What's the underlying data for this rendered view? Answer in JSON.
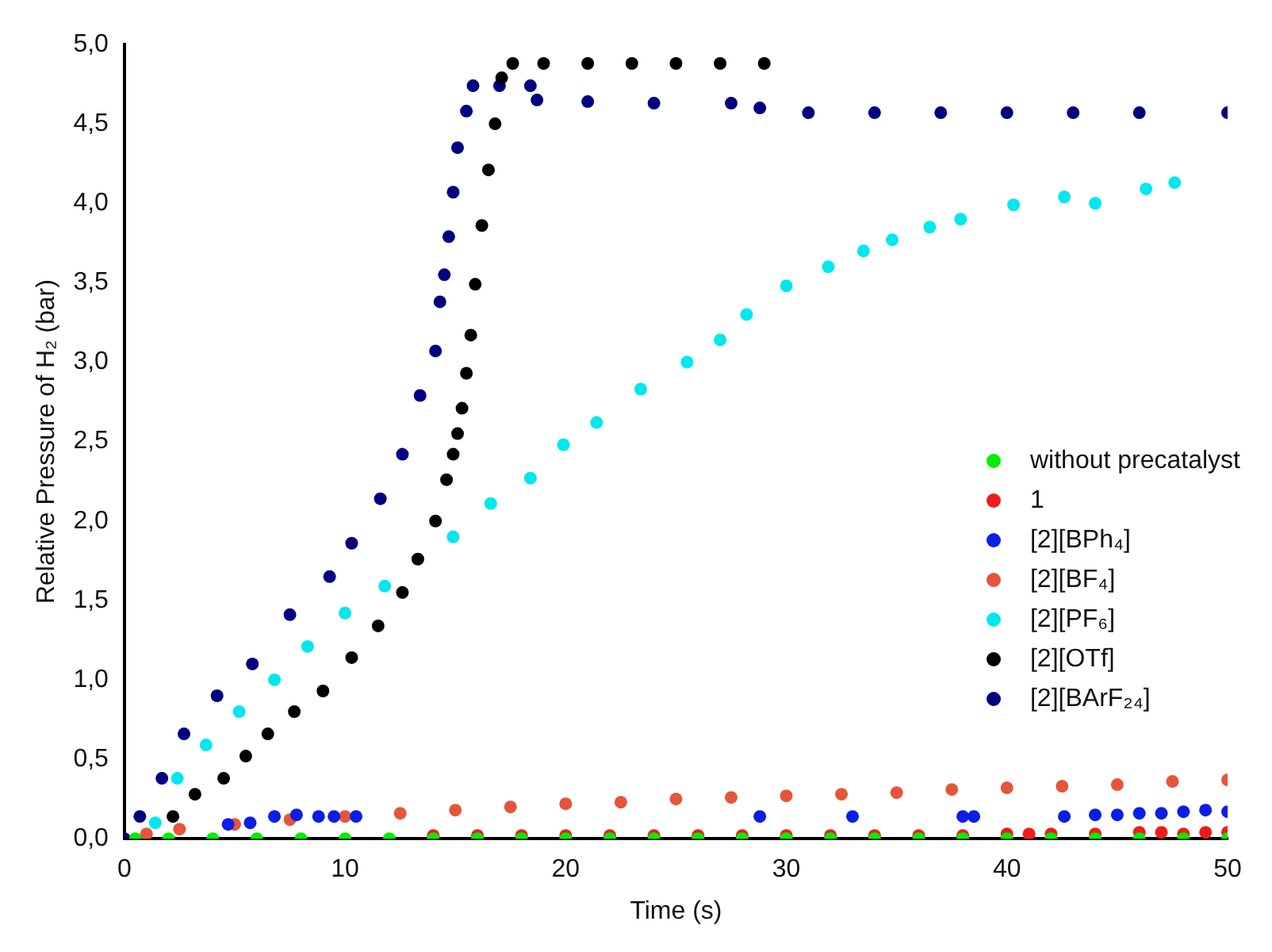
{
  "chart_data": {
    "type": "scatter",
    "xlabel": "Time (s)",
    "ylabel": "Relative Pressure of H₂ (bar)",
    "xlim": [
      0,
      50
    ],
    "xticks": [
      0,
      10,
      20,
      30,
      40,
      50
    ],
    "ylim": [
      0,
      5
    ],
    "yticks": [
      {
        "value": 0,
        "label": "0,0"
      },
      {
        "value": 0.5,
        "label": "0,5"
      },
      {
        "value": 1,
        "label": "1,0"
      },
      {
        "value": 1.5,
        "label": "1,5"
      },
      {
        "value": 2,
        "label": "2,0"
      },
      {
        "value": 2.5,
        "label": "2,5"
      },
      {
        "value": 3,
        "label": "3,0"
      },
      {
        "value": 3.5,
        "label": "3,5"
      },
      {
        "value": 4,
        "label": "4,0"
      },
      {
        "value": 4.5,
        "label": "4,5"
      },
      {
        "value": 5,
        "label": "5,0"
      }
    ],
    "grid": false,
    "legend": "right",
    "marker": "circle",
    "series": [
      {
        "name": "without precatalyst",
        "color": "#00ee00",
        "x": [
          0.5,
          2,
          4,
          6,
          8,
          10,
          12,
          14,
          16,
          18,
          20,
          22,
          24,
          26,
          28,
          30,
          32,
          34,
          36,
          38,
          40,
          42,
          44,
          46,
          48,
          50
        ],
        "values": [
          0,
          0,
          0,
          0,
          0,
          0,
          0,
          0,
          0,
          0,
          0,
          0,
          0,
          0,
          0,
          0,
          0,
          0,
          0,
          0,
          0,
          0,
          0,
          0,
          0,
          0
        ]
      },
      {
        "name": "1",
        "color": "#ee1c1c",
        "x": [
          14,
          16,
          18,
          20,
          22,
          24,
          26,
          28,
          30,
          32,
          34,
          36,
          38,
          40,
          41,
          42,
          44,
          46,
          47,
          48,
          49,
          50
        ],
        "values": [
          0.02,
          0.02,
          0.02,
          0.02,
          0.02,
          0.02,
          0.02,
          0.02,
          0.02,
          0.02,
          0.02,
          0.02,
          0.02,
          0.03,
          0.03,
          0.03,
          0.03,
          0.04,
          0.04,
          0.03,
          0.04,
          0.04
        ]
      },
      {
        "name": "[2][BPh₄]",
        "color": "#0a1ee8",
        "x": [
          4.7,
          5.7,
          6.8,
          7.8,
          8.8,
          9.5,
          10.5,
          28.8,
          33,
          38,
          38.5,
          42.6,
          44,
          45,
          46,
          47,
          48,
          49,
          50
        ],
        "values": [
          0.09,
          0.1,
          0.14,
          0.15,
          0.14,
          0.14,
          0.14,
          0.14,
          0.14,
          0.14,
          0.14,
          0.14,
          0.15,
          0.15,
          0.16,
          0.16,
          0.17,
          0.18,
          0.17
        ]
      },
      {
        "name": "[2][BF₄]",
        "color": "#e5553a",
        "x": [
          1,
          2.5,
          5,
          7.5,
          10,
          12.5,
          15,
          17.5,
          20,
          22.5,
          25,
          27.5,
          30,
          32.5,
          35,
          37.5,
          40,
          42.5,
          45,
          47.5,
          50
        ],
        "values": [
          0.03,
          0.06,
          0.09,
          0.12,
          0.14,
          0.16,
          0.18,
          0.2,
          0.22,
          0.23,
          0.25,
          0.26,
          0.27,
          0.28,
          0.29,
          0.31,
          0.32,
          0.33,
          0.34,
          0.36,
          0.37
        ]
      },
      {
        "name": "[2][PF₆]",
        "color": "#00e8ee",
        "x": [
          1.4,
          2.4,
          3.7,
          5.2,
          6.8,
          8.3,
          10,
          11.8,
          14.9,
          16.6,
          18.4,
          19.9,
          21.4,
          23.4,
          25.5,
          27,
          28.2,
          30,
          31.9,
          33.5,
          34.8,
          36.5,
          37.9,
          40.3,
          42.6,
          44,
          46.3,
          47.6
        ],
        "values": [
          0.1,
          0.38,
          0.59,
          0.8,
          1.0,
          1.21,
          1.42,
          1.59,
          1.9,
          2.11,
          2.27,
          2.48,
          2.62,
          2.83,
          3.0,
          3.14,
          3.3,
          3.48,
          3.6,
          3.7,
          3.77,
          3.85,
          3.9,
          3.99,
          4.04,
          4.0,
          4.09,
          4.13
        ]
      },
      {
        "name": "[2][OTf]",
        "color": "#000000",
        "x": [
          2.2,
          3.2,
          4.5,
          5.5,
          6.5,
          7.7,
          9,
          10.3,
          11.5,
          12.6,
          13.3,
          14.1,
          14.6,
          14.9,
          15.1,
          15.3,
          15.5,
          15.7,
          15.9,
          16.2,
          16.5,
          16.8,
          17.1,
          17.6,
          19,
          21,
          23,
          25,
          27,
          29
        ],
        "values": [
          0.14,
          0.28,
          0.38,
          0.52,
          0.66,
          0.8,
          0.93,
          1.14,
          1.34,
          1.55,
          1.76,
          2.0,
          2.26,
          2.42,
          2.55,
          2.71,
          2.93,
          3.17,
          3.49,
          3.86,
          4.21,
          4.5,
          4.79,
          4.88,
          4.88,
          4.88,
          4.88,
          4.88,
          4.88,
          4.88
        ]
      },
      {
        "name": "[2][BArF₂₄]",
        "color": "#000080",
        "x": [
          0,
          0.7,
          1.7,
          2.7,
          4.2,
          5.8,
          7.5,
          9.3,
          10.3,
          11.6,
          12.6,
          13.4,
          14.1,
          14.3,
          14.5,
          14.7,
          14.9,
          15.1,
          15.5,
          15.8,
          17,
          18.4,
          18.7,
          21,
          24,
          27.5,
          28.8,
          31,
          34,
          37,
          40,
          43,
          46,
          50
        ],
        "values": [
          0,
          0.14,
          0.38,
          0.66,
          0.9,
          1.1,
          1.41,
          1.65,
          1.86,
          2.14,
          2.42,
          2.79,
          3.07,
          3.38,
          3.55,
          3.79,
          4.07,
          4.35,
          4.58,
          4.74,
          4.74,
          4.74,
          4.65,
          4.64,
          4.63,
          4.63,
          4.6,
          4.57,
          4.57,
          4.57,
          4.57,
          4.57,
          4.57,
          4.57
        ]
      }
    ]
  }
}
